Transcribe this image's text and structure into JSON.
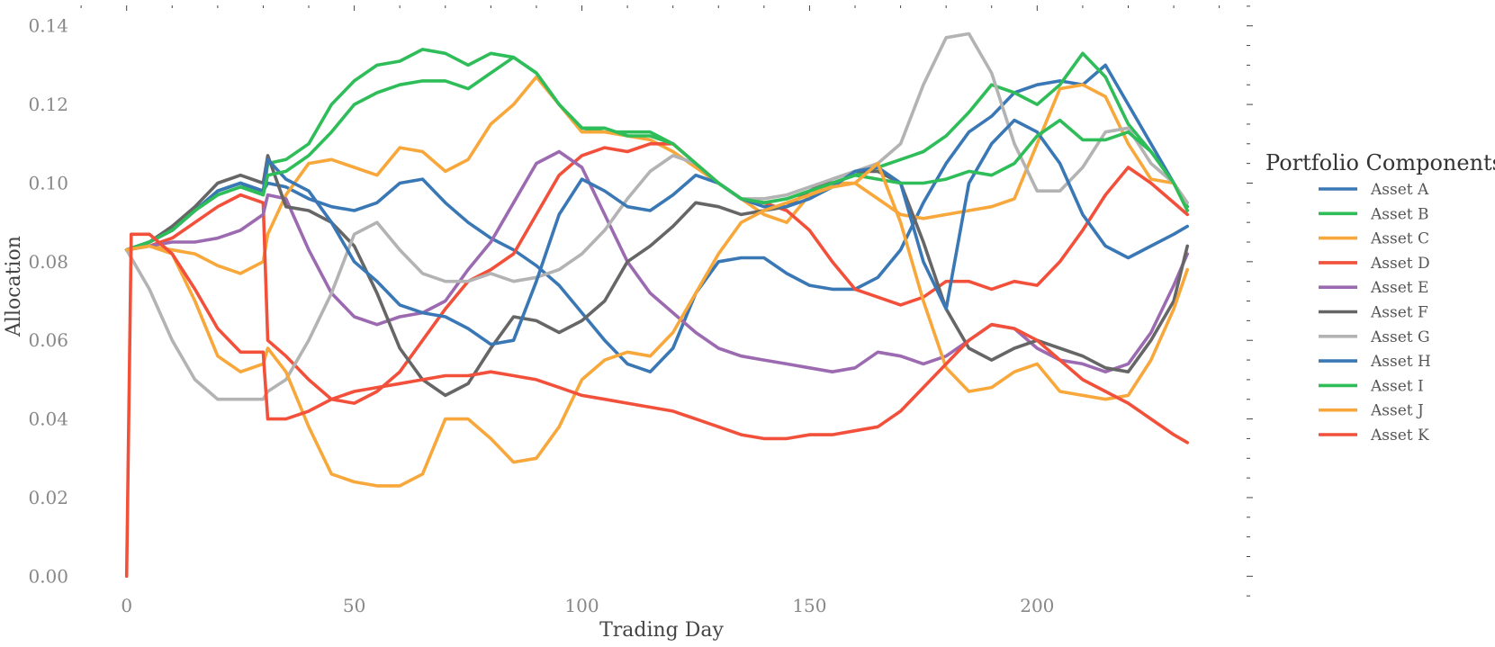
{
  "chart_data": {
    "type": "line",
    "xlabel": "Trading Day",
    "ylabel": "Allocation",
    "xlim": [
      -12,
      246
    ],
    "ylim": [
      -0.0045,
      0.1452
    ],
    "xticks": [
      0,
      50,
      100,
      150,
      200
    ],
    "xtick_labels": [
      "0",
      "50",
      "100",
      "150",
      "200"
    ],
    "yticks": [
      0.0,
      0.02,
      0.04,
      0.06,
      0.08,
      0.1,
      0.12,
      0.14
    ],
    "ytick_labels": [
      "0.00",
      "0.02",
      "0.04",
      "0.06",
      "0.08",
      "0.10",
      "0.12",
      "0.14"
    ],
    "grid": false,
    "legend": {
      "title": "Portfolio Components",
      "placement": "right, outside plot"
    },
    "series": [
      {
        "name": "Asset A",
        "color": "#3a78b5",
        "x": [
          0,
          5,
          10,
          15,
          20,
          25,
          30,
          31,
          35,
          40,
          45,
          50,
          55,
          60,
          65,
          70,
          75,
          80,
          85,
          90,
          95,
          100,
          105,
          110,
          115,
          120,
          125,
          130,
          135,
          140,
          145,
          150,
          155,
          160,
          165,
          170,
          175,
          180,
          185,
          190,
          195,
          200,
          205,
          210,
          215,
          220,
          225,
          230,
          233
        ],
        "y": [
          0.083,
          0.085,
          0.088,
          0.093,
          0.098,
          0.1,
          0.098,
          0.1,
          0.099,
          0.096,
          0.094,
          0.093,
          0.095,
          0.1,
          0.101,
          0.095,
          0.09,
          0.086,
          0.083,
          0.079,
          0.074,
          0.067,
          0.06,
          0.054,
          0.052,
          0.058,
          0.072,
          0.08,
          0.081,
          0.081,
          0.077,
          0.074,
          0.073,
          0.073,
          0.076,
          0.083,
          0.095,
          0.105,
          0.113,
          0.117,
          0.123,
          0.125,
          0.126,
          0.125,
          0.13,
          0.12,
          0.11,
          0.1,
          0.094
        ]
      },
      {
        "name": "Asset B",
        "color": "#2ebd59",
        "x": [
          0,
          5,
          10,
          15,
          20,
          25,
          30,
          31,
          35,
          40,
          45,
          50,
          55,
          60,
          65,
          70,
          75,
          80,
          85,
          90,
          95,
          100,
          105,
          110,
          115,
          120,
          125,
          130,
          135,
          140,
          145,
          150,
          155,
          160,
          165,
          170,
          175,
          180,
          185,
          190,
          195,
          200,
          205,
          210,
          215,
          220,
          225,
          230,
          233
        ],
        "y": [
          0.083,
          0.085,
          0.088,
          0.093,
          0.098,
          0.1,
          0.097,
          0.105,
          0.106,
          0.11,
          0.12,
          0.126,
          0.13,
          0.131,
          0.134,
          0.133,
          0.13,
          0.133,
          0.132,
          0.128,
          0.12,
          0.114,
          0.113,
          0.113,
          0.113,
          0.11,
          0.105,
          0.1,
          0.096,
          0.095,
          0.096,
          0.098,
          0.1,
          0.102,
          0.104,
          0.106,
          0.108,
          0.112,
          0.118,
          0.125,
          0.123,
          0.12,
          0.125,
          0.133,
          0.127,
          0.115,
          0.108,
          0.1,
          0.094
        ]
      },
      {
        "name": "Asset C",
        "color": "#f8a73a",
        "x": [
          0,
          5,
          10,
          15,
          20,
          25,
          30,
          31,
          35,
          40,
          45,
          50,
          55,
          60,
          65,
          70,
          75,
          80,
          85,
          90,
          95,
          100,
          105,
          110,
          115,
          120,
          125,
          130,
          135,
          140,
          145,
          150,
          155,
          160,
          165,
          170,
          175,
          180,
          185,
          190,
          195,
          200,
          205,
          210,
          215,
          220,
          225,
          230,
          233
        ],
        "y": [
          0.083,
          0.084,
          0.083,
          0.082,
          0.079,
          0.077,
          0.08,
          0.087,
          0.097,
          0.105,
          0.106,
          0.104,
          0.102,
          0.109,
          0.108,
          0.103,
          0.106,
          0.115,
          0.12,
          0.127,
          0.12,
          0.113,
          0.113,
          0.112,
          0.111,
          0.108,
          0.104,
          0.1,
          0.096,
          0.092,
          0.09,
          0.097,
          0.1,
          0.1,
          0.096,
          0.092,
          0.091,
          0.092,
          0.093,
          0.094,
          0.096,
          0.11,
          0.124,
          0.125,
          0.122,
          0.11,
          0.101,
          0.1,
          0.093
        ]
      },
      {
        "name": "Asset D",
        "color": "#f2503a",
        "x": [
          0,
          5,
          10,
          15,
          20,
          25,
          30,
          31,
          35,
          40,
          45,
          50,
          55,
          60,
          65,
          70,
          75,
          80,
          85,
          90,
          95,
          100,
          105,
          110,
          115,
          120,
          125,
          130,
          135,
          140,
          145,
          150,
          155,
          160,
          165,
          170,
          175,
          180,
          185,
          190,
          195,
          200,
          205,
          210,
          215,
          220,
          225,
          230,
          233
        ],
        "y": [
          0.083,
          0.084,
          0.086,
          0.09,
          0.094,
          0.097,
          0.095,
          0.06,
          0.056,
          0.05,
          0.045,
          0.044,
          0.047,
          0.052,
          0.06,
          0.068,
          0.075,
          0.078,
          0.082,
          0.092,
          0.102,
          0.107,
          0.109,
          0.108,
          0.11,
          0.11,
          0.105,
          0.1,
          0.096,
          0.095,
          0.093,
          0.088,
          0.08,
          0.073,
          0.071,
          0.069,
          0.071,
          0.075,
          0.075,
          0.073,
          0.075,
          0.074,
          0.08,
          0.088,
          0.097,
          0.104,
          0.1,
          0.095,
          0.092
        ]
      },
      {
        "name": "Asset E",
        "color": "#9b6ab0",
        "x": [
          0,
          5,
          10,
          15,
          20,
          25,
          30,
          31,
          35,
          40,
          45,
          50,
          55,
          60,
          65,
          70,
          75,
          80,
          85,
          90,
          95,
          100,
          105,
          110,
          115,
          120,
          125,
          130,
          135,
          140,
          145,
          150,
          155,
          160,
          165,
          170,
          175,
          180,
          185,
          190,
          195,
          200,
          205,
          210,
          215,
          220,
          225,
          230,
          233
        ],
        "y": [
          0.083,
          0.084,
          0.085,
          0.085,
          0.086,
          0.088,
          0.092,
          0.097,
          0.096,
          0.083,
          0.072,
          0.066,
          0.064,
          0.066,
          0.067,
          0.07,
          0.078,
          0.085,
          0.095,
          0.105,
          0.108,
          0.104,
          0.092,
          0.08,
          0.072,
          0.067,
          0.062,
          0.058,
          0.056,
          0.055,
          0.054,
          0.053,
          0.052,
          0.053,
          0.057,
          0.056,
          0.054,
          0.056,
          0.06,
          0.064,
          0.063,
          0.058,
          0.055,
          0.054,
          0.052,
          0.054,
          0.062,
          0.074,
          0.082
        ]
      },
      {
        "name": "Asset F",
        "color": "#666666",
        "x": [
          0,
          5,
          10,
          15,
          20,
          25,
          30,
          31,
          35,
          40,
          45,
          50,
          55,
          60,
          65,
          70,
          75,
          80,
          85,
          90,
          95,
          100,
          105,
          110,
          115,
          120,
          125,
          130,
          135,
          140,
          145,
          150,
          155,
          160,
          165,
          170,
          175,
          180,
          185,
          190,
          195,
          200,
          205,
          210,
          215,
          220,
          225,
          230,
          233
        ],
        "y": [
          0.083,
          0.085,
          0.089,
          0.094,
          0.1,
          0.102,
          0.1,
          0.107,
          0.094,
          0.093,
          0.09,
          0.084,
          0.072,
          0.058,
          0.05,
          0.046,
          0.049,
          0.058,
          0.066,
          0.065,
          0.062,
          0.065,
          0.07,
          0.08,
          0.084,
          0.089,
          0.095,
          0.094,
          0.092,
          0.093,
          0.094,
          0.098,
          0.101,
          0.103,
          0.103,
          0.1,
          0.085,
          0.068,
          0.058,
          0.055,
          0.058,
          0.06,
          0.058,
          0.056,
          0.053,
          0.052,
          0.06,
          0.07,
          0.084
        ]
      },
      {
        "name": "Asset G",
        "color": "#b3b3b3",
        "x": [
          0,
          5,
          10,
          15,
          20,
          25,
          30,
          31,
          35,
          40,
          45,
          50,
          55,
          60,
          65,
          70,
          75,
          80,
          85,
          90,
          95,
          100,
          105,
          110,
          115,
          120,
          125,
          130,
          135,
          140,
          145,
          150,
          155,
          160,
          165,
          170,
          175,
          180,
          185,
          190,
          195,
          200,
          205,
          210,
          215,
          220,
          225,
          230,
          233
        ],
        "y": [
          0.083,
          0.073,
          0.06,
          0.05,
          0.045,
          0.045,
          0.045,
          0.047,
          0.05,
          0.06,
          0.072,
          0.087,
          0.09,
          0.083,
          0.077,
          0.075,
          0.075,
          0.077,
          0.075,
          0.076,
          0.078,
          0.082,
          0.088,
          0.096,
          0.103,
          0.107,
          0.105,
          0.1,
          0.096,
          0.096,
          0.097,
          0.099,
          0.101,
          0.103,
          0.105,
          0.11,
          0.125,
          0.137,
          0.138,
          0.128,
          0.11,
          0.098,
          0.098,
          0.104,
          0.113,
          0.114,
          0.105,
          0.1,
          0.095
        ]
      },
      {
        "name": "Asset H",
        "color": "#3a78b5",
        "x": [
          0,
          5,
          10,
          15,
          20,
          25,
          30,
          31,
          35,
          40,
          45,
          50,
          55,
          60,
          65,
          70,
          75,
          80,
          85,
          90,
          95,
          100,
          105,
          110,
          115,
          120,
          125,
          130,
          135,
          140,
          145,
          150,
          155,
          160,
          165,
          170,
          175,
          180,
          185,
          190,
          195,
          200,
          205,
          210,
          215,
          220,
          225,
          230,
          233
        ],
        "y": [
          0.083,
          0.085,
          0.088,
          0.093,
          0.098,
          0.1,
          0.098,
          0.106,
          0.101,
          0.098,
          0.09,
          0.08,
          0.075,
          0.069,
          0.067,
          0.066,
          0.063,
          0.059,
          0.06,
          0.075,
          0.092,
          0.101,
          0.098,
          0.094,
          0.093,
          0.097,
          0.102,
          0.1,
          0.096,
          0.094,
          0.094,
          0.096,
          0.099,
          0.103,
          0.104,
          0.1,
          0.08,
          0.068,
          0.1,
          0.11,
          0.116,
          0.113,
          0.105,
          0.092,
          0.084,
          0.081,
          0.084,
          0.087,
          0.089
        ]
      },
      {
        "name": "Asset I",
        "color": "#2ebd59",
        "x": [
          0,
          5,
          10,
          15,
          20,
          25,
          30,
          31,
          35,
          40,
          45,
          50,
          55,
          60,
          65,
          70,
          75,
          80,
          85,
          90,
          95,
          100,
          105,
          110,
          115,
          120,
          125,
          130,
          135,
          140,
          145,
          150,
          155,
          160,
          165,
          170,
          175,
          180,
          185,
          190,
          195,
          200,
          205,
          210,
          215,
          220,
          225,
          230,
          233
        ],
        "y": [
          0.083,
          0.085,
          0.088,
          0.093,
          0.097,
          0.099,
          0.097,
          0.102,
          0.103,
          0.107,
          0.113,
          0.12,
          0.123,
          0.125,
          0.126,
          0.126,
          0.124,
          0.128,
          0.132,
          0.128,
          0.12,
          0.114,
          0.114,
          0.112,
          0.112,
          0.11,
          0.105,
          0.1,
          0.096,
          0.095,
          0.096,
          0.098,
          0.1,
          0.102,
          0.101,
          0.1,
          0.1,
          0.101,
          0.103,
          0.102,
          0.105,
          0.112,
          0.116,
          0.111,
          0.111,
          0.113,
          0.108,
          0.1,
          0.093
        ]
      },
      {
        "name": "Asset J",
        "color": "#f8a73a",
        "x": [
          0,
          5,
          10,
          15,
          20,
          25,
          30,
          31,
          35,
          40,
          45,
          50,
          55,
          60,
          65,
          70,
          75,
          80,
          85,
          90,
          95,
          100,
          105,
          110,
          115,
          120,
          125,
          130,
          135,
          140,
          145,
          150,
          155,
          160,
          165,
          170,
          175,
          180,
          185,
          190,
          195,
          200,
          205,
          210,
          215,
          220,
          225,
          230,
          233
        ],
        "y": [
          0.083,
          0.084,
          0.082,
          0.07,
          0.056,
          0.052,
          0.054,
          0.058,
          0.052,
          0.038,
          0.026,
          0.024,
          0.023,
          0.023,
          0.026,
          0.04,
          0.04,
          0.035,
          0.029,
          0.03,
          0.038,
          0.05,
          0.055,
          0.057,
          0.056,
          0.062,
          0.072,
          0.082,
          0.09,
          0.093,
          0.095,
          0.097,
          0.099,
          0.1,
          0.105,
          0.09,
          0.07,
          0.053,
          0.047,
          0.048,
          0.052,
          0.054,
          0.047,
          0.046,
          0.045,
          0.046,
          0.055,
          0.068,
          0.078
        ]
      },
      {
        "name": "Asset K",
        "color": "#f2503a",
        "x": [
          0,
          1,
          5,
          10,
          15,
          20,
          25,
          30,
          31,
          35,
          40,
          45,
          50,
          55,
          60,
          65,
          70,
          75,
          80,
          85,
          90,
          95,
          100,
          105,
          110,
          115,
          120,
          125,
          130,
          135,
          140,
          145,
          150,
          155,
          160,
          165,
          170,
          175,
          180,
          185,
          190,
          195,
          200,
          205,
          210,
          215,
          220,
          225,
          230,
          233
        ],
        "y": [
          0.0,
          0.087,
          0.087,
          0.082,
          0.073,
          0.063,
          0.057,
          0.057,
          0.04,
          0.04,
          0.042,
          0.045,
          0.047,
          0.048,
          0.049,
          0.05,
          0.051,
          0.051,
          0.052,
          0.051,
          0.05,
          0.048,
          0.046,
          0.045,
          0.044,
          0.043,
          0.042,
          0.04,
          0.038,
          0.036,
          0.035,
          0.035,
          0.036,
          0.036,
          0.037,
          0.038,
          0.042,
          0.048,
          0.054,
          0.06,
          0.064,
          0.063,
          0.06,
          0.055,
          0.05,
          0.047,
          0.044,
          0.04,
          0.036,
          0.034
        ]
      }
    ]
  }
}
